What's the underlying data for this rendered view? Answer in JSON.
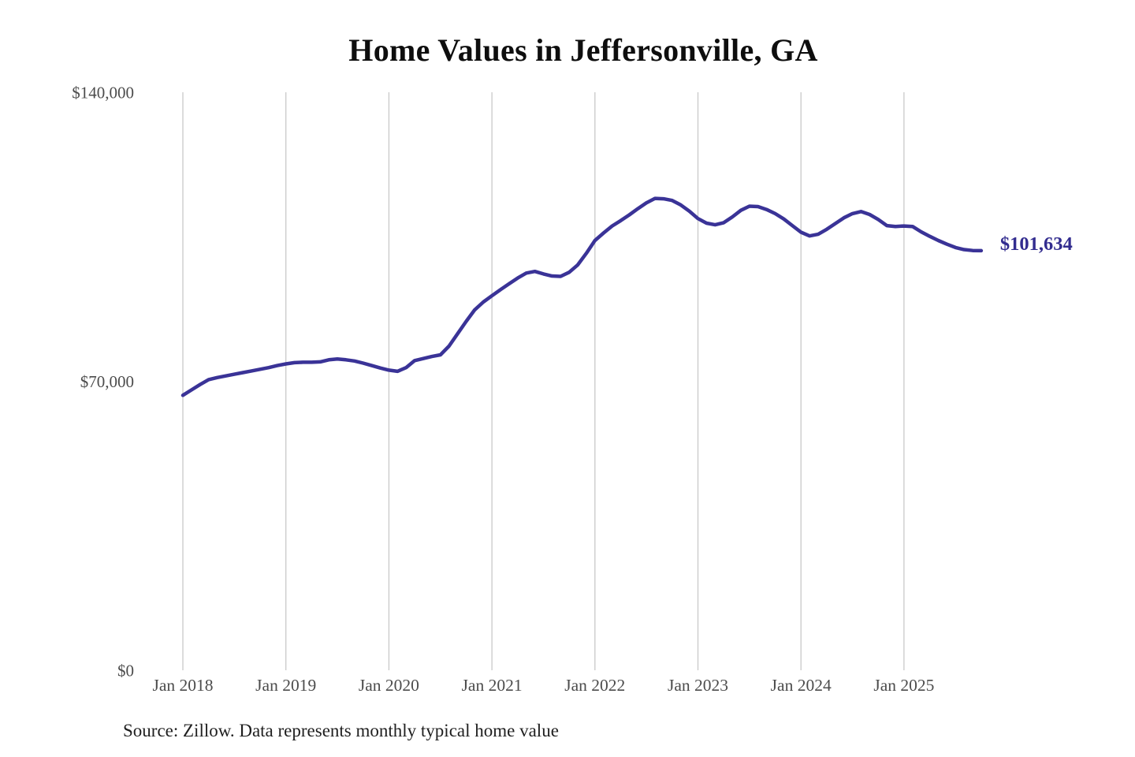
{
  "chart_data": {
    "type": "line",
    "title": "Home Values in Jeffersonville, GA",
    "source": "Source: Zillow. Data represents monthly typical home value",
    "series_name": "Monthly typical home value",
    "legend": "none",
    "grid": "vertical-only",
    "ylim": [
      0,
      140000
    ],
    "y_ticks": [
      {
        "label": "$140,000",
        "value": 140000
      },
      {
        "label": "$70,000",
        "value": 70000
      },
      {
        "label": "$0",
        "value": 0
      }
    ],
    "x_ticks": [
      "Jan 2018",
      "Jan 2019",
      "Jan 2020",
      "Jan 2021",
      "Jan 2022",
      "Jan 2023",
      "Jan 2024",
      "Jan 2025"
    ],
    "end_label": "$101,634",
    "final_value": 101634,
    "line_color": "#3a3397",
    "end_label_color": "#322c8f",
    "gridline_color": "#c9c9c9",
    "axis_text_color": "#4c4c4c",
    "x": [
      "2018-01",
      "2018-02",
      "2018-03",
      "2018-04",
      "2018-05",
      "2018-06",
      "2018-07",
      "2018-08",
      "2018-09",
      "2018-10",
      "2018-11",
      "2018-12",
      "2019-01",
      "2019-02",
      "2019-03",
      "2019-04",
      "2019-05",
      "2019-06",
      "2019-07",
      "2019-08",
      "2019-09",
      "2019-10",
      "2019-11",
      "2019-12",
      "2020-01",
      "2020-02",
      "2020-03",
      "2020-04",
      "2020-05",
      "2020-06",
      "2020-07",
      "2020-08",
      "2020-09",
      "2020-10",
      "2020-11",
      "2020-12",
      "2021-01",
      "2021-02",
      "2021-03",
      "2021-04",
      "2021-05",
      "2021-06",
      "2021-07",
      "2021-08",
      "2021-09",
      "2021-10",
      "2021-11",
      "2021-12",
      "2022-01",
      "2022-02",
      "2022-03",
      "2022-04",
      "2022-05",
      "2022-06",
      "2022-07",
      "2022-08",
      "2022-09",
      "2022-10",
      "2022-11",
      "2022-12",
      "2023-01",
      "2023-02",
      "2023-03",
      "2023-04",
      "2023-05",
      "2023-06",
      "2023-07",
      "2023-08",
      "2023-09",
      "2023-10",
      "2023-11",
      "2023-12",
      "2024-01",
      "2024-02",
      "2024-03",
      "2024-04",
      "2024-05",
      "2024-06",
      "2024-07",
      "2024-08",
      "2024-09",
      "2024-10",
      "2024-11",
      "2024-12",
      "2025-01",
      "2025-02",
      "2025-03",
      "2025-04",
      "2025-05",
      "2025-06",
      "2025-07",
      "2025-08",
      "2025-09",
      "2025-10"
    ],
    "values": [
      66600,
      67900,
      69200,
      70400,
      70900,
      71300,
      71700,
      72100,
      72500,
      72900,
      73300,
      73800,
      74200,
      74500,
      74600,
      74600,
      74700,
      75200,
      75400,
      75200,
      74900,
      74400,
      73800,
      73200,
      72700,
      72400,
      73300,
      75000,
      75500,
      76000,
      76400,
      78500,
      81500,
      84500,
      87300,
      89200,
      90700,
      92200,
      93600,
      95000,
      96200,
      96600,
      96000,
      95500,
      95400,
      96400,
      98200,
      101000,
      104100,
      105900,
      107600,
      108900,
      110300,
      111800,
      113200,
      114300,
      114200,
      113800,
      112700,
      111200,
      109400,
      108300,
      107900,
      108400,
      109800,
      111400,
      112400,
      112300,
      111600,
      110600,
      109300,
      107700,
      106100,
      105200,
      105600,
      106800,
      108200,
      109600,
      110600,
      111100,
      110400,
      109200,
      107700,
      107500,
      107600,
      107500,
      106200,
      105100,
      104100,
      103200,
      102400,
      101900,
      101660,
      101634
    ]
  }
}
